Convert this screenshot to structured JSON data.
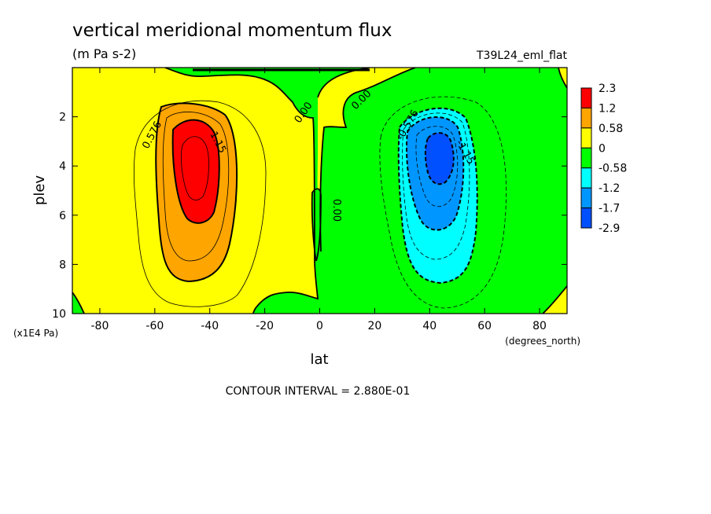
{
  "chart_data": {
    "type": "contour",
    "title": "vertical meridional momentum flux",
    "units": "(m Pa s-2)",
    "run_label": "T39L24_eml_flat",
    "xlabel": "lat",
    "x_units": "(degrees_north)",
    "ylabel": "plev",
    "y_units": "(x1E4 Pa)",
    "xlim": [
      -90,
      90
    ],
    "ylim": [
      0,
      10
    ],
    "y_inverted": true,
    "x_ticks": [
      -80,
      -60,
      -40,
      -20,
      0,
      20,
      40,
      60,
      80
    ],
    "y_ticks": [
      2,
      4,
      6,
      8,
      10
    ],
    "contour_interval_text": "CONTOUR INTERVAL = 2.880E-01",
    "contour_interval": 0.288,
    "contour_labels": [
      {
        "text": "0.576",
        "lat": -60,
        "plev": 2.8,
        "rotate": -62
      },
      {
        "text": "1.15",
        "lat": -38,
        "plev": 3.1,
        "rotate": 62
      },
      {
        "text": "0.00",
        "lat": -5,
        "plev": 1.9,
        "rotate": -55
      },
      {
        "text": "0.00",
        "lat": 16,
        "plev": 1.4,
        "rotate": -45
      },
      {
        "text": "0.00",
        "lat": 5,
        "plev": 5.8,
        "rotate": 90
      },
      {
        "text": "-0.576",
        "lat": 33,
        "plev": 2.4,
        "rotate": -60
      },
      {
        "text": "-1.15",
        "lat": 52,
        "plev": 3.5,
        "rotate": 60
      }
    ],
    "colorbar": {
      "labels": [
        "2.3",
        "1.2",
        "0.58",
        "0",
        "-0.58",
        "-1.2",
        "-1.7",
        "-2.9"
      ],
      "colors": [
        "#ff0000",
        "#ffa500",
        "#ffff00",
        "#00ff00",
        "#00ffff",
        "#0096ff",
        "#0050ff"
      ]
    },
    "extrema": [
      {
        "sign": "max",
        "lat": -43,
        "plev": 3.8,
        "approx_value": 1.8
      },
      {
        "sign": "min",
        "lat": 43,
        "plev": 3.8,
        "approx_value": -1.8
      }
    ]
  }
}
